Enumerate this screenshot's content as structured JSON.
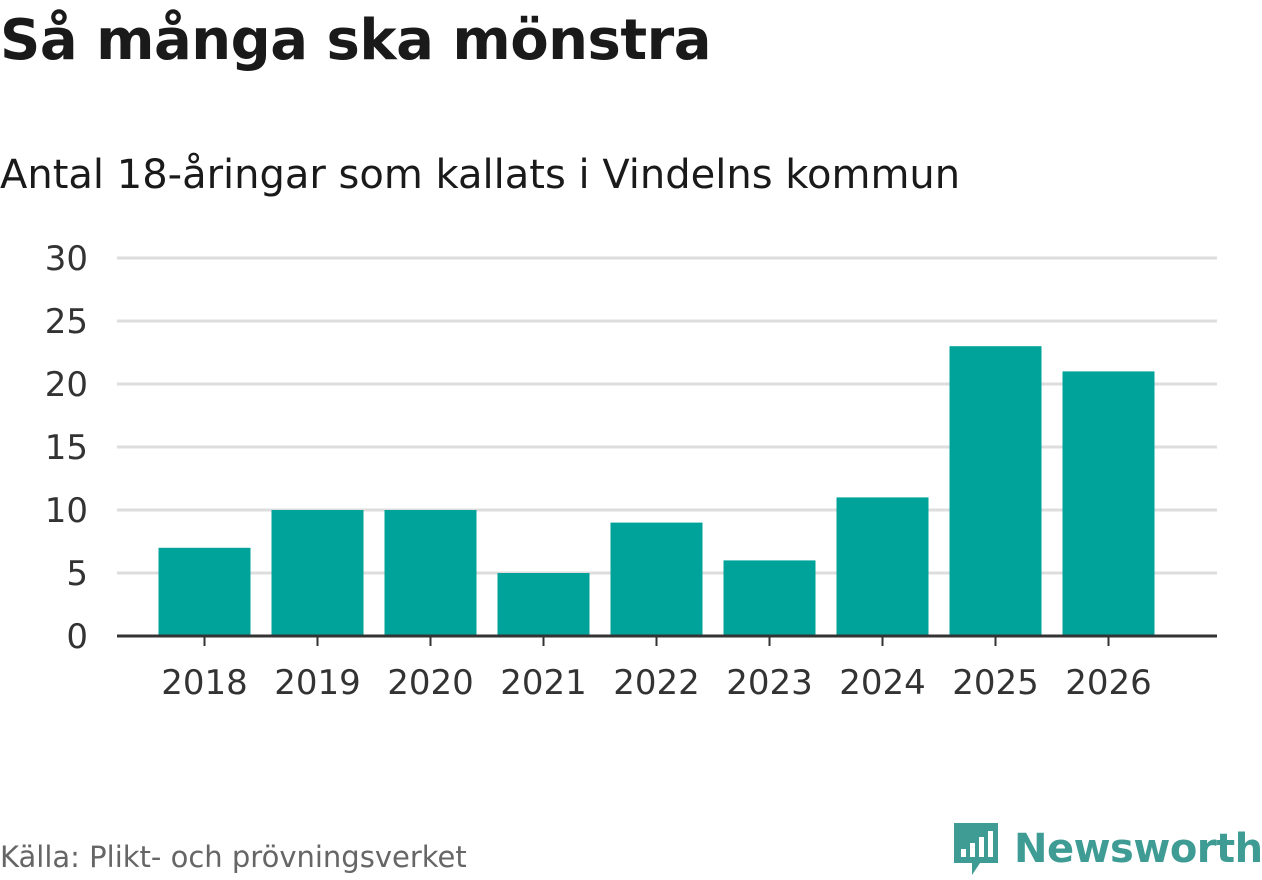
{
  "header": {
    "title": "Så många ska mönstra",
    "subtitle": "Antal 18-åringar som kallats i Vindelns kommun"
  },
  "footer": {
    "source": "Källa: Plikt- och prövningsverket",
    "brand": "Newsworthy",
    "brand_icon": "bar-chart-shield-icon"
  },
  "colors": {
    "bar": "#00a39a",
    "grid": "#dddddd",
    "axis": "#333333",
    "brand": "#3f9c94"
  },
  "chart_data": {
    "type": "bar",
    "categories": [
      "2018",
      "2019",
      "2020",
      "2021",
      "2022",
      "2023",
      "2024",
      "2025",
      "2026"
    ],
    "values": [
      7,
      10,
      10,
      5,
      9,
      6,
      11,
      23,
      21
    ],
    "title": "Så många ska mönstra",
    "subtitle": "Antal 18-åringar som kallats i Vindelns kommun",
    "xlabel": "",
    "ylabel": "",
    "ylim": [
      0,
      30
    ],
    "yticks": [
      0,
      5,
      10,
      15,
      20,
      25,
      30
    ],
    "grid": true,
    "legend": "none"
  }
}
